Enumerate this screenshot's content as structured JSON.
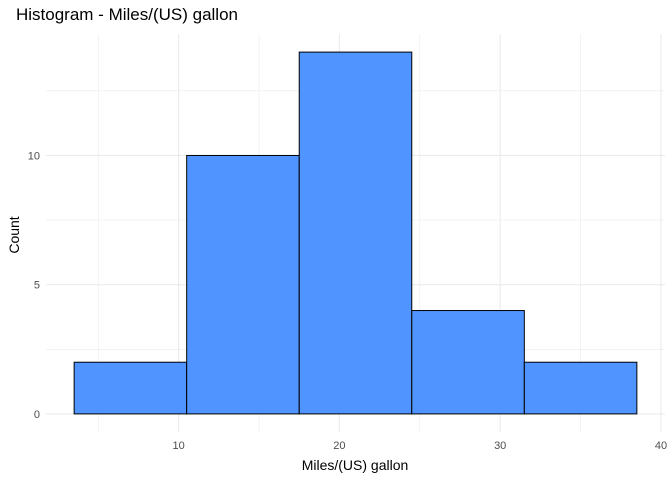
{
  "chart_data": {
    "type": "bar",
    "title": "Histogram - Miles/(US) gallon",
    "xlabel": "Miles/(US) gallon",
    "ylabel": "Count",
    "bins": [
      {
        "start": 3.5,
        "end": 10.5,
        "count": 2
      },
      {
        "start": 10.5,
        "end": 17.5,
        "count": 10
      },
      {
        "start": 17.5,
        "end": 24.5,
        "count": 14
      },
      {
        "start": 24.5,
        "end": 31.5,
        "count": 4
      },
      {
        "start": 31.5,
        "end": 38.5,
        "count": 2
      }
    ],
    "xlim": [
      1.75,
      40.25
    ],
    "ylim": [
      -0.7,
      14.7
    ],
    "x_ticks": [
      10,
      20,
      30,
      40
    ],
    "y_ticks": [
      0,
      5,
      10
    ],
    "x_tick_labels": [
      "10",
      "20",
      "30",
      "40"
    ],
    "y_tick_labels": [
      "0",
      "5",
      "10"
    ],
    "bar_color": "#4F94FF",
    "bar_edge_color": "#000000",
    "grid": true,
    "grid_color": "#EBEBEB"
  }
}
